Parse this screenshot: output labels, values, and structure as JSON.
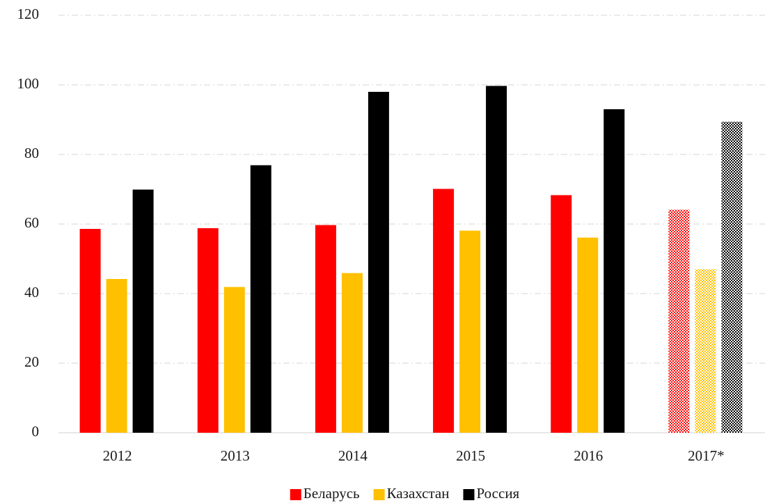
{
  "chart_data": {
    "type": "bar",
    "categories": [
      "2012",
      "2013",
      "2014",
      "2015",
      "2016",
      "2017*"
    ],
    "series": [
      {
        "name": "Беларусь",
        "color": "#ff0000",
        "values": [
          58.6,
          58.8,
          59.7,
          70.1,
          68.3,
          64.1
        ]
      },
      {
        "name": "Казахстан",
        "color": "#ffc000",
        "values": [
          44.2,
          41.9,
          45.9,
          58.1,
          56.1,
          47
        ]
      },
      {
        "name": "Россия",
        "color": "#000000",
        "values": [
          69.9,
          76.9,
          98,
          99.7,
          93,
          89.4
        ]
      }
    ],
    "ylim": [
      0,
      120
    ],
    "yticks": [
      0,
      20,
      40,
      60,
      80,
      100,
      120
    ],
    "grid": true,
    "legend": "bottom",
    "hatched_categories": [
      "2017*"
    ]
  }
}
